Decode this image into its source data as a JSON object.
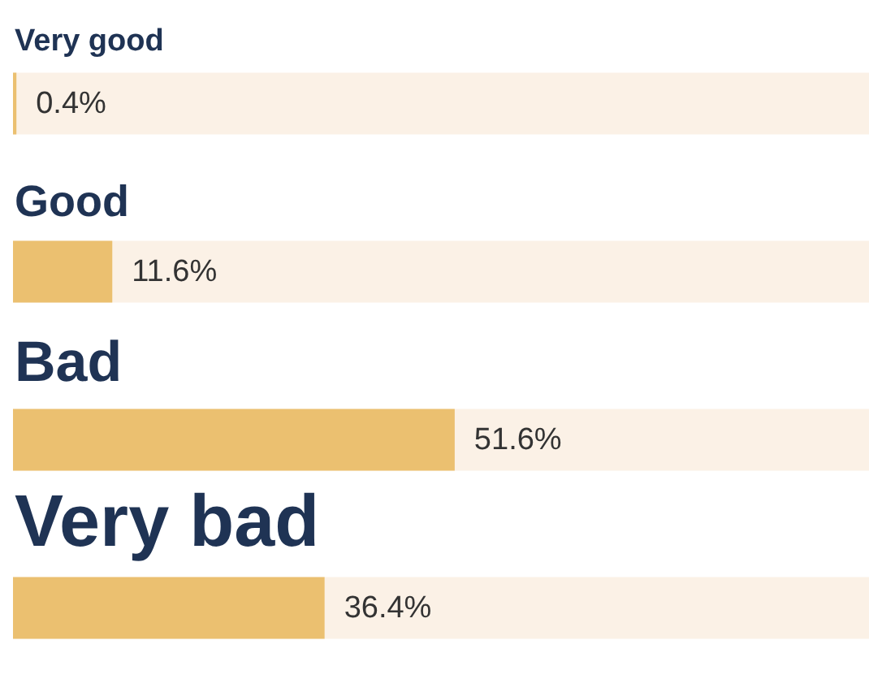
{
  "chart_data": {
    "type": "bar",
    "orientation": "horizontal",
    "categories": [
      "Very good",
      "Good",
      "Bad",
      "Very bad"
    ],
    "values": [
      0.4,
      11.6,
      51.6,
      36.4
    ],
    "value_labels": [
      "0.4%",
      "11.6%",
      "51.6%",
      "36.4%"
    ],
    "color": "#ebc070",
    "xlim": [
      0,
      100
    ]
  }
}
